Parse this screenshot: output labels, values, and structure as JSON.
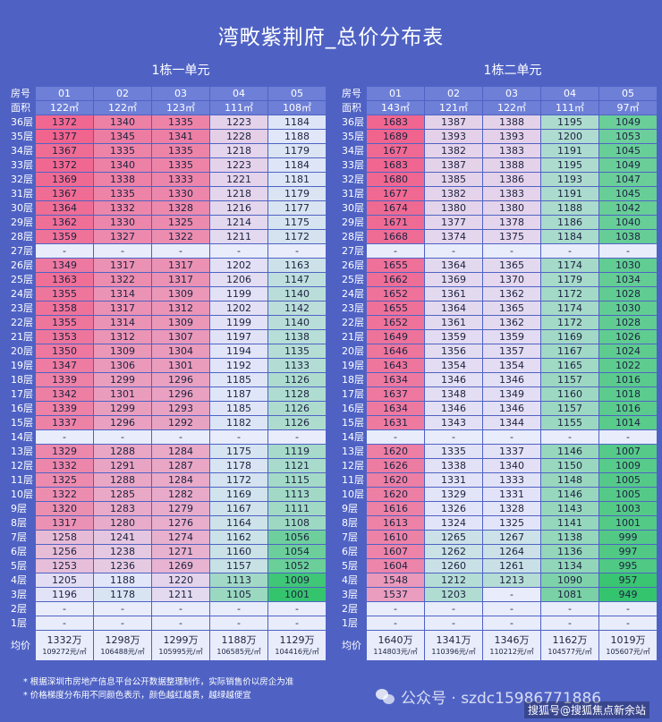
{
  "title": "湾畋紫荆府_总价分布表",
  "left": {
    "subtitle": "1栋一单元",
    "units": [
      "01",
      "02",
      "03",
      "04",
      "05"
    ],
    "areas": [
      "122㎡",
      "122㎡",
      "123㎡",
      "111㎡",
      "108㎡"
    ],
    "floors": [
      {
        "label": "36层",
        "prices": [
          "1372",
          "1340",
          "1335",
          "1223",
          "1184"
        ]
      },
      {
        "label": "35层",
        "prices": [
          "1377",
          "1345",
          "1341",
          "1228",
          "1188"
        ]
      },
      {
        "label": "34层",
        "prices": [
          "1367",
          "1335",
          "1335",
          "1218",
          "1179"
        ]
      },
      {
        "label": "33层",
        "prices": [
          "1372",
          "1340",
          "1335",
          "1223",
          "1184"
        ]
      },
      {
        "label": "32层",
        "prices": [
          "1369",
          "1338",
          "1333",
          "1221",
          "1181"
        ]
      },
      {
        "label": "31层",
        "prices": [
          "1367",
          "1335",
          "1330",
          "1218",
          "1179"
        ]
      },
      {
        "label": "30层",
        "prices": [
          "1364",
          "1332",
          "1328",
          "1216",
          "1177"
        ]
      },
      {
        "label": "29层",
        "prices": [
          "1362",
          "1330",
          "1325",
          "1214",
          "1175"
        ]
      },
      {
        "label": "28层",
        "prices": [
          "1359",
          "1327",
          "1322",
          "1211",
          "1172"
        ]
      },
      {
        "label": "27层",
        "prices": [
          "-",
          "-",
          "-",
          "-",
          "-"
        ]
      },
      {
        "label": "26层",
        "prices": [
          "1349",
          "1317",
          "1317",
          "1202",
          "1163"
        ]
      },
      {
        "label": "25层",
        "prices": [
          "1363",
          "1322",
          "1317",
          "1206",
          "1147"
        ]
      },
      {
        "label": "24层",
        "prices": [
          "1355",
          "1314",
          "1309",
          "1199",
          "1140"
        ]
      },
      {
        "label": "23层",
        "prices": [
          "1358",
          "1317",
          "1312",
          "1202",
          "1142"
        ]
      },
      {
        "label": "22层",
        "prices": [
          "1355",
          "1314",
          "1309",
          "1199",
          "1140"
        ]
      },
      {
        "label": "21层",
        "prices": [
          "1353",
          "1312",
          "1307",
          "1197",
          "1138"
        ]
      },
      {
        "label": "20层",
        "prices": [
          "1350",
          "1309",
          "1304",
          "1194",
          "1135"
        ]
      },
      {
        "label": "19层",
        "prices": [
          "1347",
          "1306",
          "1301",
          "1192",
          "1133"
        ]
      },
      {
        "label": "18层",
        "prices": [
          "1339",
          "1299",
          "1296",
          "1185",
          "1126"
        ]
      },
      {
        "label": "17层",
        "prices": [
          "1342",
          "1301",
          "1296",
          "1187",
          "1128"
        ]
      },
      {
        "label": "16层",
        "prices": [
          "1339",
          "1299",
          "1293",
          "1185",
          "1126"
        ]
      },
      {
        "label": "15层",
        "prices": [
          "1337",
          "1296",
          "1292",
          "1182",
          "1126"
        ]
      },
      {
        "label": "14层",
        "prices": [
          "-",
          "-",
          "-",
          "-",
          "-"
        ]
      },
      {
        "label": "13层",
        "prices": [
          "1329",
          "1288",
          "1284",
          "1175",
          "1119"
        ]
      },
      {
        "label": "12层",
        "prices": [
          "1332",
          "1291",
          "1287",
          "1178",
          "1121"
        ]
      },
      {
        "label": "11层",
        "prices": [
          "1325",
          "1288",
          "1284",
          "1172",
          "1115"
        ]
      },
      {
        "label": "10层",
        "prices": [
          "1322",
          "1285",
          "1282",
          "1169",
          "1113"
        ]
      },
      {
        "label": "9层",
        "prices": [
          "1320",
          "1283",
          "1279",
          "1167",
          "1111"
        ]
      },
      {
        "label": "8层",
        "prices": [
          "1317",
          "1280",
          "1276",
          "1164",
          "1108"
        ]
      },
      {
        "label": "7层",
        "prices": [
          "1258",
          "1241",
          "1274",
          "1162",
          "1056"
        ]
      },
      {
        "label": "6层",
        "prices": [
          "1256",
          "1238",
          "1271",
          "1160",
          "1054"
        ]
      },
      {
        "label": "5层",
        "prices": [
          "1253",
          "1236",
          "1269",
          "1157",
          "1052"
        ]
      },
      {
        "label": "4层",
        "prices": [
          "1205",
          "1188",
          "1220",
          "1113",
          "1009"
        ]
      },
      {
        "label": "3层",
        "prices": [
          "1196",
          "1178",
          "1211",
          "1105",
          "1001"
        ]
      },
      {
        "label": "2层",
        "prices": [
          "-",
          "-",
          "-",
          "-",
          "-"
        ]
      },
      {
        "label": "1层",
        "prices": [
          "-",
          "-",
          "-",
          "-",
          "-"
        ]
      }
    ],
    "avg_total": [
      "1332万",
      "1298万",
      "1299万",
      "1188万",
      "1129万"
    ],
    "avg_unit": [
      "109272元/㎡",
      "106488元/㎡",
      "105995元/㎡",
      "106585元/㎡",
      "104416元/㎡"
    ]
  },
  "right": {
    "subtitle": "1栋二单元",
    "units": [
      "01",
      "02",
      "03",
      "04",
      "05"
    ],
    "areas": [
      "143㎡",
      "121㎡",
      "122㎡",
      "111㎡",
      "97㎡"
    ],
    "floors": [
      {
        "label": "36层",
        "prices": [
          "1683",
          "1387",
          "1388",
          "1195",
          "1049"
        ]
      },
      {
        "label": "35层",
        "prices": [
          "1689",
          "1393",
          "1393",
          "1200",
          "1053"
        ]
      },
      {
        "label": "34层",
        "prices": [
          "1677",
          "1382",
          "1383",
          "1191",
          "1045"
        ]
      },
      {
        "label": "33层",
        "prices": [
          "1683",
          "1387",
          "1388",
          "1195",
          "1049"
        ]
      },
      {
        "label": "32层",
        "prices": [
          "1680",
          "1385",
          "1386",
          "1193",
          "1047"
        ]
      },
      {
        "label": "31层",
        "prices": [
          "1677",
          "1382",
          "1383",
          "1191",
          "1045"
        ]
      },
      {
        "label": "30层",
        "prices": [
          "1674",
          "1380",
          "1380",
          "1188",
          "1042"
        ]
      },
      {
        "label": "29层",
        "prices": [
          "1671",
          "1377",
          "1378",
          "1186",
          "1040"
        ]
      },
      {
        "label": "28层",
        "prices": [
          "1668",
          "1374",
          "1375",
          "1184",
          "1038"
        ]
      },
      {
        "label": "27层",
        "prices": [
          "-",
          "-",
          "-",
          "-",
          "-"
        ]
      },
      {
        "label": "26层",
        "prices": [
          "1655",
          "1364",
          "1365",
          "1174",
          "1030"
        ]
      },
      {
        "label": "25层",
        "prices": [
          "1662",
          "1369",
          "1370",
          "1179",
          "1034"
        ]
      },
      {
        "label": "24层",
        "prices": [
          "1652",
          "1361",
          "1362",
          "1172",
          "1028"
        ]
      },
      {
        "label": "23层",
        "prices": [
          "1655",
          "1364",
          "1365",
          "1174",
          "1030"
        ]
      },
      {
        "label": "22层",
        "prices": [
          "1652",
          "1361",
          "1362",
          "1172",
          "1028"
        ]
      },
      {
        "label": "21层",
        "prices": [
          "1649",
          "1359",
          "1359",
          "1169",
          "1026"
        ]
      },
      {
        "label": "20层",
        "prices": [
          "1646",
          "1356",
          "1357",
          "1167",
          "1024"
        ]
      },
      {
        "label": "19层",
        "prices": [
          "1643",
          "1354",
          "1354",
          "1165",
          "1022"
        ]
      },
      {
        "label": "18层",
        "prices": [
          "1634",
          "1346",
          "1346",
          "1157",
          "1016"
        ]
      },
      {
        "label": "17层",
        "prices": [
          "1637",
          "1348",
          "1349",
          "1160",
          "1018"
        ]
      },
      {
        "label": "16层",
        "prices": [
          "1634",
          "1346",
          "1346",
          "1157",
          "1016"
        ]
      },
      {
        "label": "15层",
        "prices": [
          "1631",
          "1343",
          "1344",
          "1155",
          "1014"
        ]
      },
      {
        "label": "14层",
        "prices": [
          "-",
          "-",
          "-",
          "-",
          "-"
        ]
      },
      {
        "label": "13层",
        "prices": [
          "1620",
          "1335",
          "1337",
          "1146",
          "1007"
        ]
      },
      {
        "label": "12层",
        "prices": [
          "1626",
          "1338",
          "1340",
          "1150",
          "1009"
        ]
      },
      {
        "label": "11层",
        "prices": [
          "1620",
          "1331",
          "1333",
          "1148",
          "1005"
        ]
      },
      {
        "label": "10层",
        "prices": [
          "1620",
          "1329",
          "1331",
          "1146",
          "1005"
        ]
      },
      {
        "label": "9层",
        "prices": [
          "1616",
          "1326",
          "1328",
          "1143",
          "1003"
        ]
      },
      {
        "label": "8层",
        "prices": [
          "1613",
          "1324",
          "1325",
          "1141",
          "1001"
        ]
      },
      {
        "label": "7层",
        "prices": [
          "1610",
          "1265",
          "1267",
          "1138",
          "999"
        ]
      },
      {
        "label": "6层",
        "prices": [
          "1607",
          "1262",
          "1264",
          "1136",
          "997"
        ]
      },
      {
        "label": "5层",
        "prices": [
          "1604",
          "1260",
          "1261",
          "1134",
          "995"
        ]
      },
      {
        "label": "4层",
        "prices": [
          "1548",
          "1212",
          "1213",
          "1090",
          "957"
        ]
      },
      {
        "label": "3层",
        "prices": [
          "1537",
          "1203",
          "-",
          "1081",
          "949"
        ]
      },
      {
        "label": "2层",
        "prices": [
          "-",
          "-",
          "-",
          "-",
          "-"
        ]
      },
      {
        "label": "1层",
        "prices": [
          "-",
          "-",
          "-",
          "-",
          "-"
        ]
      }
    ],
    "avg_total": [
      "1640万",
      "1341万",
      "1346万",
      "1162万",
      "1019万"
    ],
    "avg_unit": [
      "114803元/㎡",
      "110396元/㎡",
      "110212元/㎡",
      "104577元/㎡",
      "105607元/㎡"
    ]
  },
  "labels": {
    "unit_row": "房号",
    "area_row": "面积",
    "avg_row": "均价"
  },
  "notes": [
    "* 根据深圳市房地产信息平台公开数据整理制作，实际销售价以房企为准",
    "* 价格梯度分布用不同颜色表示，颜色越红越贵，越绿越便宜"
  ],
  "watermark": {
    "wechat": "公众号 · szdc15986771886",
    "sohu": "搜狐号@搜狐焦点新余站"
  },
  "colors": {
    "background": "#4f62c4",
    "header_cell": "#6d7fd6",
    "empty_cell": "#e8ecfb",
    "expensive": "#f0648e",
    "cheap": "#35c46e"
  }
}
